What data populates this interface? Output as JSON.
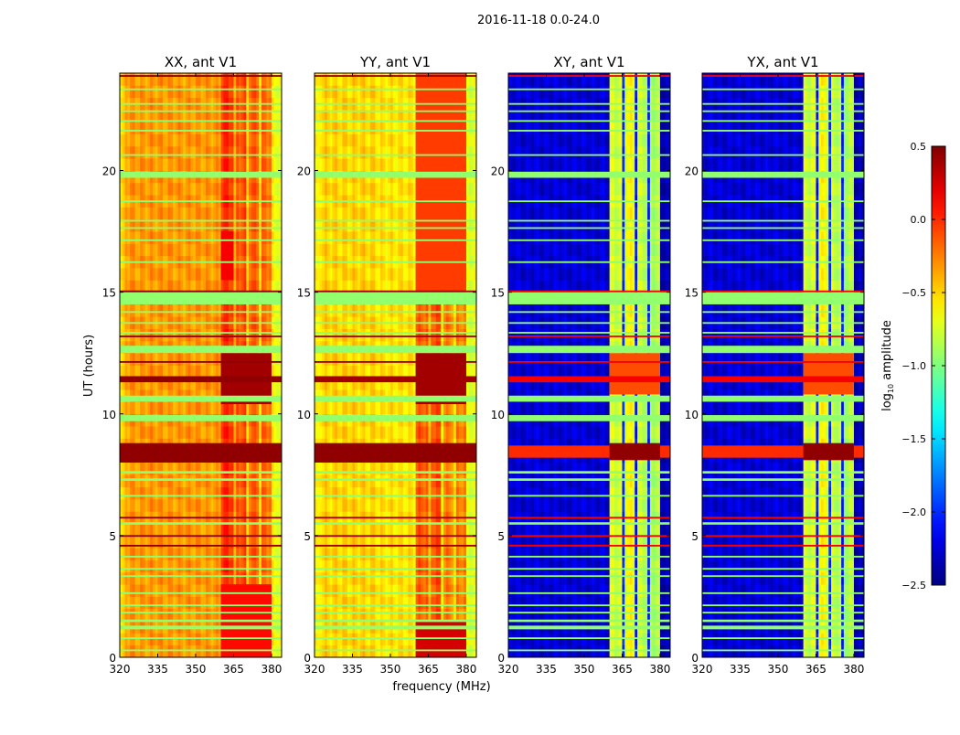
{
  "chart_data": {
    "type": "heatmap",
    "title": "2016-11-18 0.0-24.0",
    "xlabel": "frequency (MHz)",
    "ylabel": "UT (hours)",
    "xlim": [
      320,
      384
    ],
    "ylim": [
      0,
      24
    ],
    "xticks": [
      "320",
      "335",
      "350",
      "365",
      "380"
    ],
    "yticks": [
      "0",
      "5",
      "10",
      "15",
      "20"
    ],
    "colormap": "jet",
    "colorbar": {
      "range": [
        -2.5,
        0.5
      ],
      "label_main": "log",
      "label_sub": "10",
      "label_rest": " amplitude",
      "ticks": [
        {
          "value": 0.5,
          "label": "0.5"
        },
        {
          "value": 0.0,
          "label": "0.0"
        },
        {
          "value": -0.5,
          "label": "−0.5"
        },
        {
          "value": -1.0,
          "label": "−1.0"
        },
        {
          "value": -1.5,
          "label": "−1.5"
        },
        {
          "value": -2.0,
          "label": "−2.0"
        },
        {
          "value": -2.5,
          "label": "−2.5"
        }
      ]
    },
    "flagged_rows_value": -0.95,
    "flagged_rows_hours": [
      [
        0.25,
        0.32
      ],
      [
        0.75,
        0.82
      ],
      [
        1.15,
        1.3
      ],
      [
        1.45,
        1.55
      ],
      [
        1.8,
        1.87
      ],
      [
        2.1,
        2.17
      ],
      [
        2.6,
        2.67
      ],
      [
        3.3,
        3.37
      ],
      [
        3.6,
        3.67
      ],
      [
        4.1,
        4.17
      ],
      [
        5.45,
        5.55
      ],
      [
        6.6,
        6.67
      ],
      [
        7.25,
        7.35
      ],
      [
        7.55,
        7.65
      ],
      [
        9.7,
        9.95
      ],
      [
        10.5,
        10.75
      ],
      [
        12.5,
        12.8
      ],
      [
        13.3,
        13.37
      ],
      [
        13.7,
        13.77
      ],
      [
        14.15,
        14.22
      ],
      [
        14.5,
        15.0
      ],
      [
        16.2,
        16.27
      ],
      [
        17.1,
        17.17
      ],
      [
        17.6,
        17.67
      ],
      [
        17.9,
        17.97
      ],
      [
        18.7,
        18.77
      ],
      [
        19.7,
        19.95
      ],
      [
        20.6,
        20.67
      ],
      [
        21.6,
        21.67
      ],
      [
        22.0,
        22.07
      ],
      [
        22.4,
        22.47
      ],
      [
        22.7,
        22.77
      ],
      [
        23.3,
        23.37
      ]
    ],
    "high_rows_hours": [
      [
        4.55,
        4.62
      ],
      [
        4.95,
        5.02
      ],
      [
        5.7,
        5.77
      ],
      [
        11.3,
        11.55
      ],
      [
        12.1,
        12.17
      ],
      [
        13.15,
        13.22
      ],
      [
        15.0,
        15.07
      ],
      [
        23.85,
        23.92
      ]
    ],
    "panels": [
      {
        "title": "XX, ant V1",
        "high_rows_value": 0.45,
        "freq_segments": [
          [
            320,
            322,
            -0.55
          ],
          [
            322,
            360,
            -0.32
          ],
          [
            360,
            365,
            0.0
          ],
          [
            365,
            366,
            -0.45
          ],
          [
            366,
            370,
            -0.12
          ],
          [
            370,
            371,
            -0.5
          ],
          [
            371,
            375,
            -0.15
          ],
          [
            375,
            376,
            -0.5
          ],
          [
            376,
            380,
            -0.2
          ],
          [
            380,
            384,
            -0.65
          ]
        ],
        "blocks": [
          [
            10.4,
            12.5,
            360,
            380,
            0.4
          ],
          [
            0,
            3,
            360,
            380,
            0.1
          ],
          [
            15.5,
            17.5,
            360,
            365,
            0.15
          ],
          [
            8.0,
            8.8,
            320,
            384,
            0.45
          ]
        ]
      },
      {
        "title": "YY, ant V1",
        "high_rows_value": 0.4,
        "freq_segments": [
          [
            320,
            322,
            -0.65
          ],
          [
            322,
            345,
            -0.5
          ],
          [
            345,
            360,
            -0.55
          ],
          [
            360,
            365,
            -0.15
          ],
          [
            365,
            366,
            -0.5
          ],
          [
            366,
            370,
            -0.1
          ],
          [
            370,
            371,
            -0.5
          ],
          [
            371,
            375,
            -0.25
          ],
          [
            375,
            376,
            -0.55
          ],
          [
            376,
            380,
            -0.25
          ],
          [
            380,
            384,
            -0.7
          ]
        ],
        "blocks": [
          [
            10.4,
            12.5,
            360,
            380,
            0.4
          ],
          [
            0,
            1.5,
            360,
            380,
            0.25
          ],
          [
            15,
            24,
            360,
            380,
            -0.05
          ],
          [
            8.0,
            8.8,
            320,
            384,
            0.45
          ]
        ]
      },
      {
        "title": "XY, ant V1",
        "high_rows_value": 0.15,
        "freq_segments": [
          [
            320,
            360,
            -2.25
          ],
          [
            360,
            365,
            -0.75
          ],
          [
            365,
            366,
            -2.0
          ],
          [
            366,
            370,
            -0.65
          ],
          [
            370,
            371,
            -2.0
          ],
          [
            371,
            375,
            -0.8
          ],
          [
            375,
            376,
            -2.1
          ],
          [
            376,
            380,
            -0.85
          ],
          [
            380,
            384,
            -2.35
          ]
        ],
        "blocks": [
          [
            8.2,
            8.7,
            320,
            384,
            0.0
          ],
          [
            8.1,
            8.8,
            360,
            380,
            0.45
          ],
          [
            10.8,
            12.5,
            360,
            380,
            -0.1
          ]
        ]
      },
      {
        "title": "YX, ant V1",
        "high_rows_value": 0.15,
        "freq_segments": [
          [
            320,
            360,
            -2.25
          ],
          [
            360,
            365,
            -0.75
          ],
          [
            365,
            366,
            -2.0
          ],
          [
            366,
            370,
            -0.65
          ],
          [
            370,
            371,
            -2.0
          ],
          [
            371,
            375,
            -0.8
          ],
          [
            375,
            376,
            -2.1
          ],
          [
            376,
            380,
            -0.85
          ],
          [
            380,
            384,
            -2.35
          ]
        ],
        "blocks": [
          [
            8.2,
            8.7,
            320,
            384,
            0.0
          ],
          [
            8.1,
            8.8,
            360,
            380,
            0.45
          ],
          [
            10.8,
            12.5,
            360,
            380,
            -0.1
          ]
        ]
      }
    ]
  }
}
